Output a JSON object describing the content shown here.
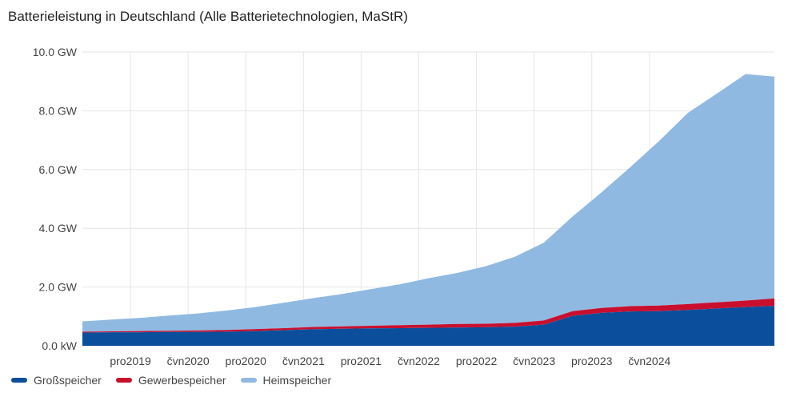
{
  "title": "Batterieleistung in Deutschland (Alle Batterietechnologien, MaStR)",
  "chart_data": {
    "type": "area",
    "stacked": true,
    "title": "Batterieleistung in Deutschland (Alle Batterietechnologien, MaStR)",
    "y_unit": "GW",
    "ylim": [
      0,
      10
    ],
    "y_ticks": [
      {
        "value": 0,
        "label": "0.0 kW"
      },
      {
        "value": 2,
        "label": "2.0 GW"
      },
      {
        "value": 4,
        "label": "4.0 GW"
      },
      {
        "value": 6,
        "label": "6.0 GW"
      },
      {
        "value": 8,
        "label": "8.0 GW"
      },
      {
        "value": 10,
        "label": "10.0 GW"
      }
    ],
    "x_start": "2018-07",
    "x_end": "2024-07",
    "x_ticks": [
      {
        "date": "2018-12",
        "label": "pro2019"
      },
      {
        "date": "2019-06",
        "label": "čvn2020"
      },
      {
        "date": "2019-12",
        "label": "pro2020"
      },
      {
        "date": "2020-06",
        "label": "čvn2021"
      },
      {
        "date": "2020-12",
        "label": "pro2021"
      },
      {
        "date": "2021-06",
        "label": "čvn2022"
      },
      {
        "date": "2021-12",
        "label": "pro2022"
      },
      {
        "date": "2022-06",
        "label": "čvn2023"
      },
      {
        "date": "2022-12",
        "label": "pro2023"
      },
      {
        "date": "2023-06",
        "label": "čvn2024"
      }
    ],
    "x": [
      "2018-07",
      "2018-10",
      "2019-01",
      "2019-04",
      "2019-07",
      "2019-10",
      "2020-01",
      "2020-04",
      "2020-07",
      "2020-10",
      "2021-01",
      "2021-04",
      "2021-07",
      "2021-10",
      "2022-01",
      "2022-04",
      "2022-07",
      "2022-10",
      "2023-01",
      "2023-04",
      "2023-07",
      "2023-10",
      "2024-01",
      "2024-04",
      "2024-07"
    ],
    "series": [
      {
        "name": "Großspeicher",
        "color": "#0b4f9c",
        "values": [
          0.45,
          0.46,
          0.46,
          0.47,
          0.47,
          0.48,
          0.5,
          0.53,
          0.56,
          0.58,
          0.59,
          0.6,
          0.61,
          0.62,
          0.63,
          0.65,
          0.72,
          1.02,
          1.12,
          1.17,
          1.18,
          1.22,
          1.27,
          1.32,
          1.36
        ]
      },
      {
        "name": "Gewerbespeicher",
        "color": "#c8102e",
        "values": [
          0.03,
          0.03,
          0.04,
          0.04,
          0.05,
          0.06,
          0.07,
          0.07,
          0.08,
          0.08,
          0.09,
          0.1,
          0.11,
          0.12,
          0.12,
          0.13,
          0.14,
          0.16,
          0.17,
          0.18,
          0.19,
          0.2,
          0.21,
          0.22,
          0.25
        ]
      },
      {
        "name": "Heimspeicher",
        "color": "#90b9e2",
        "values": [
          0.35,
          0.4,
          0.45,
          0.52,
          0.58,
          0.66,
          0.75,
          0.87,
          0.98,
          1.1,
          1.25,
          1.39,
          1.58,
          1.74,
          1.96,
          2.25,
          2.65,
          3.22,
          3.93,
          4.73,
          5.6,
          6.51,
          7.1,
          7.71,
          7.55
        ]
      }
    ],
    "grid": true,
    "legend_position": "bottom-left"
  }
}
